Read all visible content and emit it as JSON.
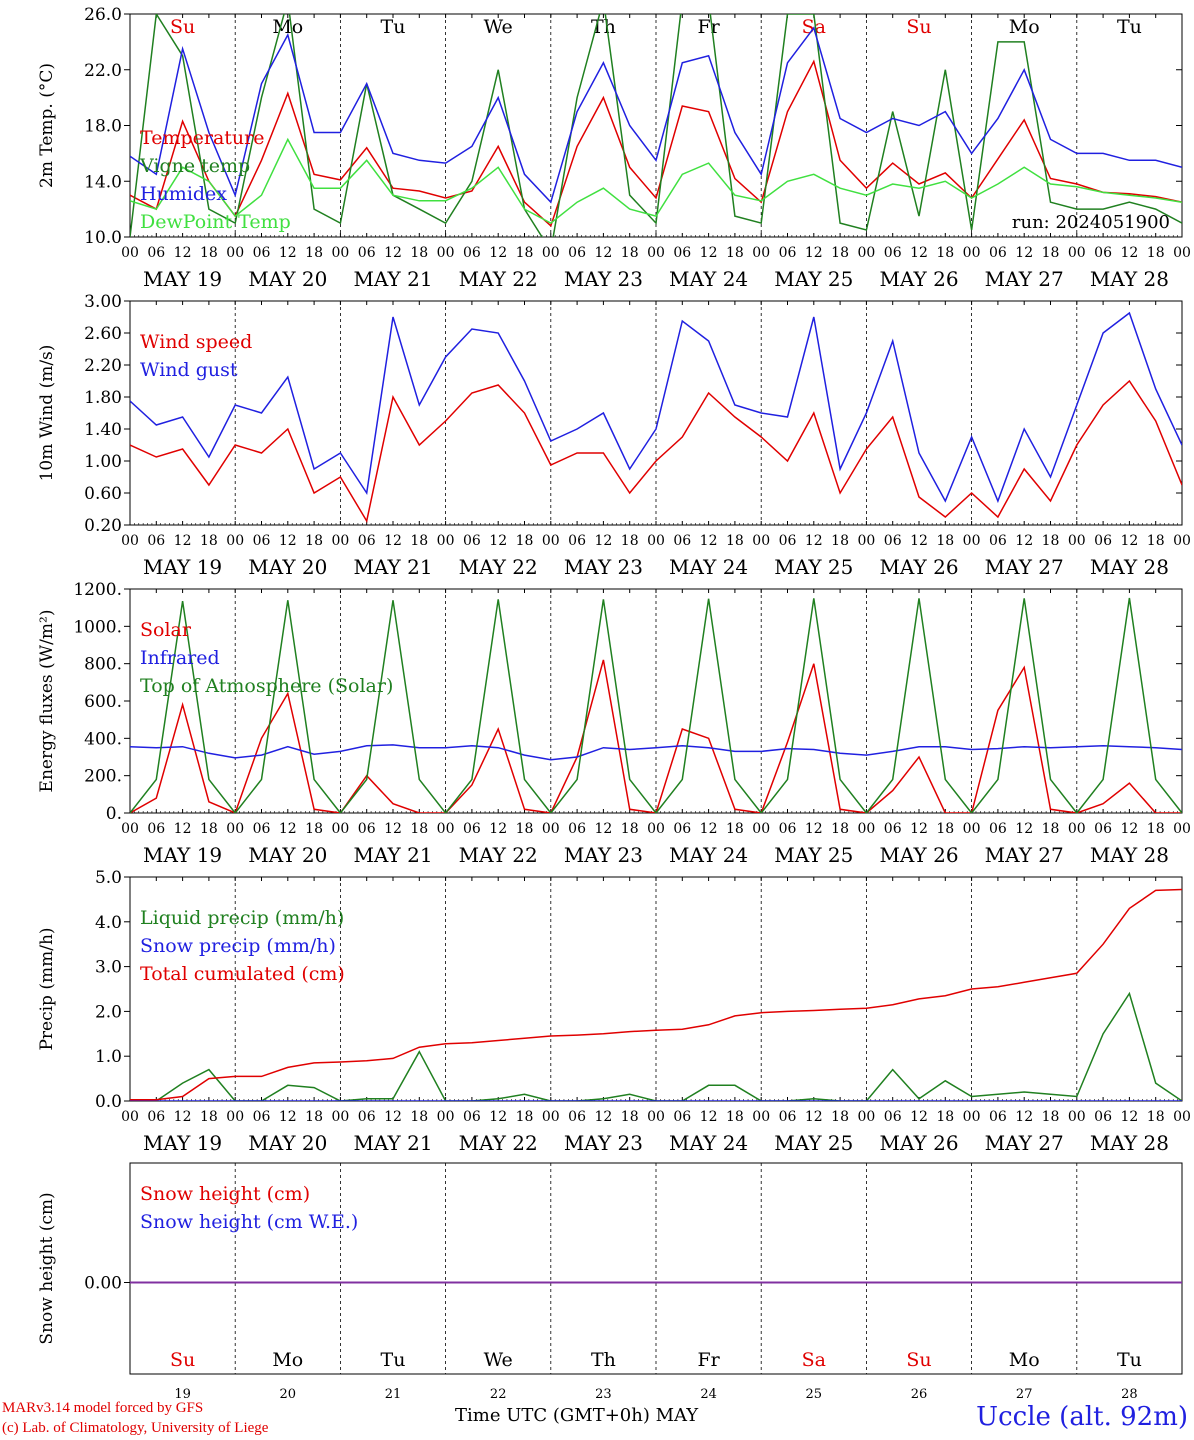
{
  "meta": {
    "run_label": "run: 2024051900",
    "footer_model": "MARv3.14 model forced by GFS",
    "footer_lab": "(c) Lab. of Climatology, University of Liege",
    "footer_axis": "Time UTC (GMT+0h) MAY",
    "station": "Uccle (alt. 92m)"
  },
  "axis": {
    "hour_ticks": [
      "00",
      "06",
      "12",
      "18"
    ],
    "last_tick": "00",
    "date_labels": [
      "MAY 19",
      "MAY 20",
      "MAY 21",
      "MAY 22",
      "MAY 23",
      "MAY 24",
      "MAY 25",
      "MAY 26",
      "MAY 27",
      "MAY 28"
    ],
    "weekdays": [
      "Su",
      "Mo",
      "Tu",
      "We",
      "Th",
      "Fr",
      "Sa",
      "Su",
      "Mo",
      "Tu"
    ],
    "weekday_colors": [
      "#e00000",
      "#000000",
      "#000000",
      "#000000",
      "#000000",
      "#000000",
      "#e00000",
      "#e00000",
      "#000000",
      "#000000"
    ],
    "day_numbers": [
      "19",
      "20",
      "21",
      "22",
      "23",
      "24",
      "25",
      "26",
      "27",
      "28"
    ]
  },
  "chart_data": [
    {
      "type": "line",
      "ylabel": "2m Temp. (°C)",
      "ylim": [
        10,
        26
      ],
      "yticks": [
        "10.0",
        "14.0",
        "18.0",
        "22.0",
        "26.0"
      ],
      "x_hours_from": "2024-05-19 00 UTC",
      "x": [
        0,
        6,
        12,
        18,
        24,
        30,
        36,
        42,
        48,
        54,
        60,
        66,
        72,
        78,
        84,
        90,
        96,
        102,
        108,
        114,
        120,
        126,
        132,
        138,
        144,
        150,
        156,
        162,
        168,
        174,
        180,
        186,
        192,
        198,
        204,
        210,
        216,
        222,
        228,
        234,
        240
      ],
      "series": [
        {
          "name": "Temperature",
          "color": "#e00000",
          "values": [
            13.0,
            12.0,
            18.3,
            14.0,
            11.5,
            15.5,
            20.3,
            14.5,
            14.1,
            16.4,
            13.5,
            13.3,
            12.8,
            13.3,
            16.5,
            12.5,
            10.8,
            16.5,
            20.0,
            15.0,
            12.8,
            19.4,
            19.0,
            14.2,
            12.5,
            19.0,
            22.6,
            15.5,
            13.5,
            15.3,
            13.8,
            14.6,
            12.8,
            15.6,
            18.4,
            14.2,
            13.8,
            13.2,
            13.1,
            12.9,
            12.5
          ]
        },
        {
          "name": "Vigne temp",
          "color": "#208020",
          "values": [
            10.0,
            26.0,
            23.0,
            12.0,
            11.0,
            20.0,
            27.0,
            12.0,
            11.0,
            21.0,
            13.0,
            12.0,
            11.0,
            14.0,
            22.0,
            12.0,
            9.0,
            20.0,
            27.0,
            13.0,
            11.0,
            27.0,
            27.0,
            11.5,
            11.0,
            26.0,
            26.0,
            11.0,
            10.5,
            19.0,
            11.5,
            22.0,
            10.5,
            24.0,
            24.0,
            12.5,
            12.0,
            12.0,
            12.5,
            12.0,
            11.0
          ]
        },
        {
          "name": "Humidex",
          "color": "#2020e0",
          "values": [
            15.8,
            14.5,
            23.5,
            17.5,
            13.0,
            21.0,
            24.5,
            17.5,
            17.5,
            21.0,
            16.0,
            15.5,
            15.3,
            16.5,
            20.0,
            14.5,
            12.5,
            19.0,
            22.5,
            18.0,
            15.5,
            22.5,
            23.0,
            17.5,
            14.5,
            22.5,
            25.0,
            18.5,
            17.5,
            18.5,
            18.0,
            19.0,
            16.0,
            18.5,
            22.0,
            17.0,
            16.0,
            16.0,
            15.5,
            15.5,
            15.0
          ]
        },
        {
          "name": "DewPoint Temp",
          "color": "#40e040",
          "values": [
            12.6,
            12.0,
            15.0,
            14.0,
            11.5,
            13.0,
            17.0,
            13.5,
            13.5,
            15.5,
            13.0,
            12.6,
            12.6,
            13.5,
            15.0,
            12.0,
            11.0,
            12.5,
            13.5,
            12.0,
            11.5,
            14.5,
            15.3,
            13.0,
            12.6,
            14.0,
            14.5,
            13.5,
            13.0,
            13.8,
            13.5,
            14.0,
            12.8,
            13.8,
            15.0,
            13.8,
            13.6,
            13.2,
            13.0,
            12.8,
            12.5
          ]
        }
      ]
    },
    {
      "type": "line",
      "ylabel": "10m Wind (m/s)",
      "ylim": [
        0.2,
        3.0
      ],
      "yticks": [
        "0.20",
        "0.60",
        "1.00",
        "1.40",
        "1.80",
        "2.20",
        "2.60",
        "3.00"
      ],
      "x": [
        0,
        6,
        12,
        18,
        24,
        30,
        36,
        42,
        48,
        54,
        60,
        66,
        72,
        78,
        84,
        90,
        96,
        102,
        108,
        114,
        120,
        126,
        132,
        138,
        144,
        150,
        156,
        162,
        168,
        174,
        180,
        186,
        192,
        198,
        204,
        210,
        216,
        222,
        228,
        234,
        240
      ],
      "series": [
        {
          "name": "Wind speed",
          "color": "#e00000",
          "values": [
            1.2,
            1.05,
            1.15,
            0.7,
            1.2,
            1.1,
            1.4,
            0.6,
            0.8,
            0.25,
            1.8,
            1.2,
            1.5,
            1.85,
            1.95,
            1.6,
            0.95,
            1.1,
            1.1,
            0.6,
            1.0,
            1.3,
            1.85,
            1.55,
            1.3,
            1.0,
            1.6,
            0.6,
            1.15,
            1.55,
            0.55,
            0.3,
            0.6,
            0.3,
            0.9,
            0.5,
            1.2,
            1.7,
            2.0,
            1.5,
            0.7
          ]
        },
        {
          "name": "Wind gust",
          "color": "#2020e0",
          "values": [
            1.75,
            1.45,
            1.55,
            1.05,
            1.7,
            1.6,
            2.05,
            0.9,
            1.1,
            0.6,
            2.8,
            1.7,
            2.3,
            2.65,
            2.6,
            2.0,
            1.25,
            1.4,
            1.6,
            0.9,
            1.4,
            2.75,
            2.5,
            1.7,
            1.6,
            1.55,
            2.8,
            0.9,
            1.6,
            2.5,
            1.1,
            0.5,
            1.3,
            0.5,
            1.4,
            0.8,
            1.7,
            2.6,
            2.85,
            1.9,
            1.2
          ]
        }
      ]
    },
    {
      "type": "line",
      "ylabel": "Energy fluxes (W/m²)",
      "ylim": [
        0,
        1200
      ],
      "yticks": [
        "0.",
        "200.",
        "400.",
        "600.",
        "800.",
        "1000.",
        "1200."
      ],
      "x": [
        0,
        6,
        12,
        18,
        24,
        30,
        36,
        42,
        48,
        54,
        60,
        66,
        72,
        78,
        84,
        90,
        96,
        102,
        108,
        114,
        120,
        126,
        132,
        138,
        144,
        150,
        156,
        162,
        168,
        174,
        180,
        186,
        192,
        198,
        204,
        210,
        216,
        222,
        228,
        234,
        240
      ],
      "series": [
        {
          "name": "Solar",
          "color": "#e00000",
          "values": [
            0,
            80,
            580,
            60,
            0,
            400,
            640,
            20,
            0,
            200,
            50,
            0,
            0,
            150,
            450,
            20,
            0,
            300,
            820,
            20,
            0,
            450,
            400,
            20,
            0,
            380,
            800,
            20,
            0,
            120,
            300,
            0,
            0,
            550,
            780,
            20,
            0,
            50,
            160,
            0,
            0
          ]
        },
        {
          "name": "Infrared",
          "color": "#2020e0",
          "values": [
            355,
            350,
            355,
            320,
            295,
            310,
            355,
            315,
            330,
            360,
            365,
            350,
            350,
            360,
            350,
            310,
            285,
            300,
            350,
            340,
            350,
            360,
            350,
            330,
            330,
            345,
            340,
            320,
            310,
            330,
            355,
            355,
            340,
            345,
            355,
            350,
            355,
            360,
            355,
            350,
            340
          ]
        },
        {
          "name": "Top of Atmosphere (Solar)",
          "color": "#208020",
          "values": [
            0,
            180,
            1135,
            180,
            0,
            180,
            1140,
            180,
            0,
            180,
            1140,
            180,
            0,
            180,
            1145,
            180,
            0,
            180,
            1145,
            180,
            0,
            180,
            1148,
            180,
            0,
            180,
            1150,
            180,
            0,
            180,
            1150,
            180,
            0,
            180,
            1150,
            180,
            0,
            180,
            1152,
            180,
            0
          ]
        }
      ]
    },
    {
      "type": "line",
      "ylabel": "Precip (mm/h)",
      "ylim": [
        0,
        5
      ],
      "yticks": [
        "0.0",
        "1.0",
        "2.0",
        "3.0",
        "4.0",
        "5.0"
      ],
      "x": [
        0,
        6,
        12,
        18,
        24,
        30,
        36,
        42,
        48,
        54,
        60,
        66,
        72,
        78,
        84,
        90,
        96,
        102,
        108,
        114,
        120,
        126,
        132,
        138,
        144,
        150,
        156,
        162,
        168,
        174,
        180,
        186,
        192,
        198,
        204,
        210,
        216,
        222,
        228,
        234,
        240
      ],
      "series": [
        {
          "name": "Liquid precip (mm/h)",
          "color": "#208020",
          "values": [
            0,
            0,
            0.4,
            0.7,
            0,
            0,
            0.35,
            0.3,
            0,
            0.05,
            0.05,
            1.1,
            0,
            0,
            0.05,
            0.15,
            0,
            0,
            0.05,
            0.15,
            0,
            0,
            0.35,
            0.35,
            0,
            0,
            0.05,
            0,
            0,
            0.7,
            0.05,
            0.45,
            0.1,
            0.15,
            0.2,
            0.15,
            0.1,
            1.5,
            2.4,
            0.4,
            0
          ]
        },
        {
          "name": "Snow precip (mm/h)",
          "color": "#2020e0",
          "values": [
            0,
            0,
            0,
            0,
            0,
            0,
            0,
            0,
            0,
            0,
            0,
            0,
            0,
            0,
            0,
            0,
            0,
            0,
            0,
            0,
            0,
            0,
            0,
            0,
            0,
            0,
            0,
            0,
            0,
            0,
            0,
            0,
            0,
            0,
            0,
            0,
            0,
            0,
            0,
            0,
            0
          ]
        },
        {
          "name": "Total cumulated (cm)",
          "color": "#e00000",
          "values": [
            0.03,
            0.03,
            0.1,
            0.5,
            0.55,
            0.55,
            0.75,
            0.85,
            0.87,
            0.9,
            0.95,
            1.2,
            1.28,
            1.3,
            1.35,
            1.4,
            1.45,
            1.47,
            1.5,
            1.55,
            1.58,
            1.6,
            1.7,
            1.9,
            1.97,
            2.0,
            2.02,
            2.05,
            2.07,
            2.15,
            2.28,
            2.35,
            2.5,
            2.55,
            2.65,
            2.75,
            2.85,
            3.5,
            4.3,
            4.7,
            4.72
          ]
        }
      ]
    },
    {
      "type": "line",
      "ylabel": "Snow height (cm)",
      "yticks": [
        "0.00"
      ],
      "x": [
        0,
        240
      ],
      "series": [
        {
          "name": "Snow height (cm)",
          "color": "#e00000",
          "values": [
            0,
            0
          ]
        },
        {
          "name": "Snow height (cm W.E.)",
          "color": "#2020e0",
          "values": [
            0,
            0
          ]
        }
      ]
    }
  ]
}
